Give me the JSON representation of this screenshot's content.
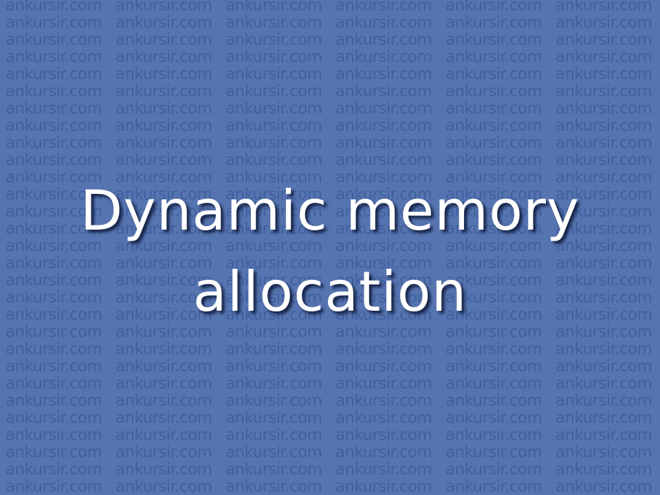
{
  "slide": {
    "title_lines": [
      "Dynamic memory",
      "allocation"
    ],
    "watermark_text": "ankursir.com",
    "background_color": "#5674b0",
    "watermark_color": "#41609e",
    "title_color": "#ffffff"
  }
}
